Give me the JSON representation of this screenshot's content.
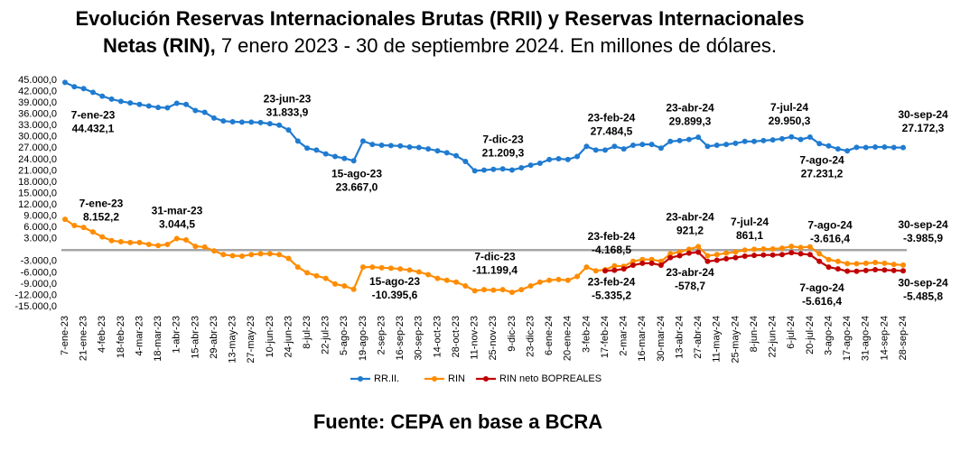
{
  "chart_data": {
    "type": "line",
    "title": [
      "Evolución Reservas Internacionales Brutas (RRII) y Reservas Internacionales",
      "Netas (RIN),",
      "7 enero 2023 - 30 de septiembre 2024. En millones de dólares."
    ],
    "source": "Fuente: CEPA en base a BCRA",
    "categories": [
      "7-ene-23",
      null,
      "21-ene-23",
      null,
      "4-feb-23",
      null,
      "18-feb-23",
      null,
      "4-mar-23",
      null,
      "18-mar-23",
      null,
      "1-abr-23",
      null,
      "15-abr-23",
      null,
      "29-abr-23",
      null,
      "13-may-23",
      null,
      "27-may-23",
      null,
      "10-jun-23",
      null,
      "24-jun-23",
      null,
      "8-jul-23",
      null,
      "22-jul-23",
      null,
      "5-ago-23",
      null,
      "19-ago-23",
      null,
      "2-sep-23",
      null,
      "16-sep-23",
      null,
      "30-sep-23",
      null,
      "14-oct-23",
      null,
      "28-oct-23",
      null,
      "11-nov-23",
      null,
      "25-nov-23",
      null,
      "9-dic-23",
      null,
      "23-dic-23",
      null,
      "6-ene-24",
      null,
      "20-ene-24",
      null,
      "3-feb-24",
      null,
      "17-feb-24",
      null,
      "2-mar-24",
      null,
      "16-mar-24",
      null,
      "30-mar-24",
      null,
      "13-abr-24",
      null,
      "27-abr-24",
      null,
      "11-may-24",
      null,
      "25-may-24",
      null,
      "8-jun-24",
      null,
      "22-jun-24",
      null,
      "6-jul-24",
      null,
      "20-jul-24",
      null,
      "3-ago-24",
      null,
      "17-ago-24",
      null,
      "31-ago-24",
      null,
      "14-sep-24",
      null,
      "28-sep-24"
    ],
    "ylim": [
      -15000,
      45000
    ],
    "yticks": [
      {
        "value": 45000,
        "label": "45.000,0"
      },
      {
        "value": 42000,
        "label": "42.000,0"
      },
      {
        "value": 39000,
        "label": "39.000,0"
      },
      {
        "value": 36000,
        "label": "36.000,0"
      },
      {
        "value": 33000,
        "label": "33.000,0"
      },
      {
        "value": 30000,
        "label": "30.000,0"
      },
      {
        "value": 27000,
        "label": "27.000,0"
      },
      {
        "value": 24000,
        "label": "24.000,0"
      },
      {
        "value": 21000,
        "label": "21.000,0"
      },
      {
        "value": 18000,
        "label": "18.000,0"
      },
      {
        "value": 15000,
        "label": "15.000,0"
      },
      {
        "value": 12000,
        "label": "12.000,0"
      },
      {
        "value": 9000,
        "label": "9.000,0"
      },
      {
        "value": 6000,
        "label": "6.000,0"
      },
      {
        "value": 3000,
        "label": "3.000,0"
      },
      {
        "value": -3000,
        "label": "-3.000,0"
      },
      {
        "value": -6000,
        "label": "-6.000,0"
      },
      {
        "value": -9000,
        "label": "-9.000,0"
      },
      {
        "value": -12000,
        "label": "-12.000,0"
      },
      {
        "value": -15000,
        "label": "-15.000,0"
      }
    ],
    "series": [
      {
        "name": "RR.II.",
        "color": "#1f7bd0",
        "values": [
          44432.1,
          43300,
          42800,
          41800,
          40800,
          40000,
          39400,
          39000,
          38600,
          38200,
          37800,
          37700,
          38900,
          38600,
          37000,
          36500,
          35000,
          34200,
          34000,
          33900,
          33900,
          33800,
          33500,
          33100,
          31833.9,
          28900,
          27000,
          26500,
          25500,
          24800,
          24300,
          23667,
          28900,
          28000,
          27800,
          27700,
          27600,
          27300,
          27200,
          26800,
          26300,
          25800,
          25000,
          23500,
          21000,
          21200,
          21400,
          21500,
          21209.3,
          21800,
          22500,
          23000,
          24000,
          24200,
          24000,
          24800,
          27500,
          26500,
          26500,
          27484.5,
          26800,
          27800,
          28000,
          28000,
          27000,
          28800,
          29000,
          29300,
          29899.3,
          27500,
          27800,
          28000,
          28300,
          28800,
          28800,
          29000,
          29200,
          29500,
          30000,
          29300,
          29950.3,
          28200,
          27600,
          26800,
          26300,
          27231.2,
          27200,
          27300,
          27300,
          27200,
          27172.3
        ],
        "annotations": [
          {
            "date": "7-ene-23",
            "label": "44.432,1",
            "value": 44432.1
          },
          {
            "date": "23-jun-23",
            "label": "31.833,9",
            "value": 31833.9
          },
          {
            "date": "15-ago-23",
            "label": "23.667,0",
            "value": 23667
          },
          {
            "date": "7-dic-23",
            "label": "21.209,3",
            "value": 21209.3
          },
          {
            "date": "23-feb-24",
            "label": "27.484,5",
            "value": 27484.5
          },
          {
            "date": "23-abr-24",
            "label": "29.899,3",
            "value": 29899.3
          },
          {
            "date": "7-jul-24",
            "label": "29.950,3",
            "value": 29950.3
          },
          {
            "date": "7-ago-24",
            "label": "27.231,2",
            "value": 27231.2
          },
          {
            "date": "30-sep-24",
            "label": "27.172,3",
            "value": 27172.3
          }
        ]
      },
      {
        "name": "RIN",
        "color": "#ff8c00",
        "values": [
          8152.2,
          6500,
          6000,
          4800,
          3500,
          2500,
          2200,
          2000,
          2000,
          1500,
          1200,
          1500,
          3044.5,
          2700,
          1000,
          800,
          -200,
          -1200,
          -1500,
          -1600,
          -1200,
          -1000,
          -1000,
          -1200,
          -2200,
          -4500,
          -6000,
          -6800,
          -7500,
          -9000,
          -9500,
          -10395.6,
          -4500,
          -4500,
          -4700,
          -4800,
          -5000,
          -5300,
          -5800,
          -6500,
          -7500,
          -8000,
          -8500,
          -9500,
          -10800,
          -10500,
          -10600,
          -10500,
          -11199.4,
          -10500,
          -9500,
          -8500,
          -8000,
          -7800,
          -8000,
          -7000,
          -4500,
          -5500,
          -5200,
          -4168.5,
          -4300,
          -3000,
          -2500,
          -2500,
          -3000,
          -1000,
          -500,
          200,
          921.2,
          -1500,
          -1200,
          -800,
          -500,
          0,
          200,
          300,
          300,
          500,
          1000,
          700,
          861.1,
          -1000,
          -2500,
          -3000,
          -3600,
          -3616.4,
          -3500,
          -3300,
          -3500,
          -3800,
          -3985.9
        ],
        "annotations": [
          {
            "date": "7-ene-23",
            "label": "8.152,2",
            "value": 8152.2
          },
          {
            "date": "31-mar-23",
            "label": "3.044,5",
            "value": 3044.5
          },
          {
            "date": "15-ago-23",
            "label": "-10.395,6",
            "value": -10395.6
          },
          {
            "date": "7-dic-23",
            "label": "-11.199,4",
            "value": -11199.4
          },
          {
            "date": "23-feb-24",
            "label": "-4.168,5",
            "value": -4168.5
          },
          {
            "date": "23-abr-24",
            "label": "921,2",
            "value": 921.2
          },
          {
            "date": "7-jul-24",
            "label": "861,1",
            "value": 861.1
          },
          {
            "date": "7-ago-24",
            "label": "-3.616,4",
            "value": -3616.4
          },
          {
            "date": "30-sep-24",
            "label": "-3.985,9",
            "value": -3985.9
          }
        ]
      },
      {
        "name": "RIN neto BOPREALES",
        "color": "#c00000",
        "values": [
          null,
          null,
          null,
          null,
          null,
          null,
          null,
          null,
          null,
          null,
          null,
          null,
          null,
          null,
          null,
          null,
          null,
          null,
          null,
          null,
          null,
          null,
          null,
          null,
          null,
          null,
          null,
          null,
          null,
          null,
          null,
          null,
          null,
          null,
          null,
          null,
          null,
          null,
          null,
          null,
          null,
          null,
          null,
          null,
          null,
          null,
          null,
          null,
          null,
          null,
          null,
          null,
          null,
          null,
          null,
          null,
          null,
          null,
          -5500,
          -5335.2,
          -5000,
          -4000,
          -3500,
          -3500,
          -4000,
          -2000,
          -1500,
          -800,
          -578.7,
          -3000,
          -2700,
          -2300,
          -2000,
          -1600,
          -1400,
          -1300,
          -1300,
          -1200,
          -700,
          -1000,
          -1200,
          -3000,
          -4500,
          -5000,
          -5600,
          -5616.4,
          -5400,
          -5200,
          -5300,
          -5400,
          -5485.8
        ],
        "annotations": [
          {
            "date": "23-feb-24",
            "label": "-5.335,2",
            "value": -5335.2
          },
          {
            "date": "23-abr-24",
            "label": "-578,7",
            "value": -578.7
          },
          {
            "date": "7-ago-24",
            "label": "-5.616,4",
            "value": -5616.4
          },
          {
            "date": "30-sep-24",
            "label": "-5.485,8",
            "value": -5485.8
          }
        ]
      }
    ]
  }
}
